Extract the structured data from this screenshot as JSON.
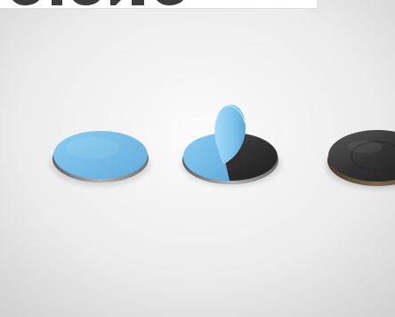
{
  "scene": {
    "background_center": "#fbfbfb",
    "background_edge": "#d2d2d2",
    "top_strip_color": "#ffffff",
    "top_text_color": "#1a1a1a"
  },
  "objects": [
    {
      "name": "blue-topped-disc",
      "film_color": "#77bde8",
      "film_shade": "#5ea9d8",
      "edge_color": "#7c7c7c"
    },
    {
      "name": "half-peeled-disc",
      "film_color": "#7cc3ec",
      "core_color": "#3d3d3d",
      "edge_color": "#8a8a8a"
    },
    {
      "name": "dark-disc",
      "core_color": "#2e2e2e",
      "edge_color": "#6a5a48"
    }
  ]
}
